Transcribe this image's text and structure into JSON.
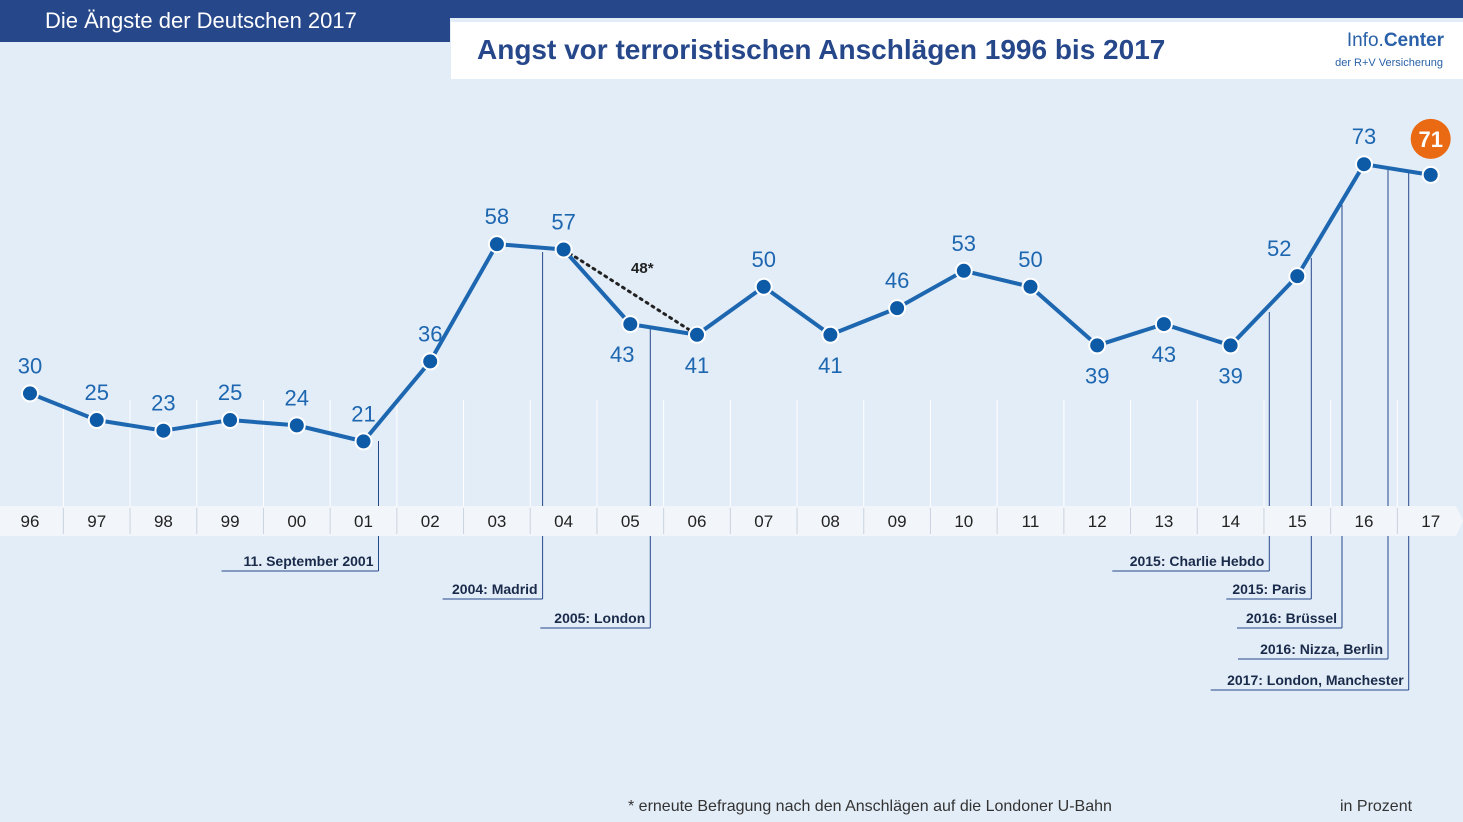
{
  "header": {
    "tab_title": "Die Ängste der Deutschen 2017",
    "logo_main": "Info.",
    "logo_accent": "Center",
    "logo_sub": "der R+V Versicherung"
  },
  "colors": {
    "line": "#1d66b0",
    "point_fill": "#0d5aa7",
    "label": "#1d66b0",
    "highlight": "#ea6a13",
    "navy": "#26478a",
    "axis_band": "#f2f5f9"
  },
  "chart_data": {
    "type": "line",
    "title": "Angst vor terroristischen Anschlägen 1996 bis 2017",
    "categories": [
      "96",
      "97",
      "98",
      "99",
      "00",
      "01",
      "02",
      "03",
      "04",
      "05",
      "06",
      "07",
      "08",
      "09",
      "10",
      "11",
      "12",
      "13",
      "14",
      "15",
      "16",
      "17"
    ],
    "series": [
      {
        "values": [
          30,
          25,
          23,
          25,
          24,
          21,
          36,
          58,
          57,
          43,
          41,
          50,
          41,
          46,
          53,
          50,
          39,
          43,
          39,
          52,
          73,
          71
        ]
      }
    ],
    "extra_point": {
      "category": "05",
      "value": 48,
      "label": "48*"
    },
    "highlight_index": 21,
    "ylim": [
      0,
      100
    ],
    "events": [
      {
        "label": "11. September 2001",
        "category": "01"
      },
      {
        "label": "2004: Madrid",
        "category": "04"
      },
      {
        "label": "2005: London",
        "category": "05"
      },
      {
        "label": "2015: Charlie Hebdo",
        "category": "15"
      },
      {
        "label": "2015: Paris",
        "category": "15"
      },
      {
        "label": "2016: Brüssel",
        "category": "16"
      },
      {
        "label": "2016: Nizza, Berlin",
        "category": "16"
      },
      {
        "label": "2017: London, Manchester",
        "category": "17"
      }
    ],
    "footnote": "* erneute Befragung nach den Anschlägen auf die Londoner U-Bahn",
    "unit": "in Prozent"
  }
}
